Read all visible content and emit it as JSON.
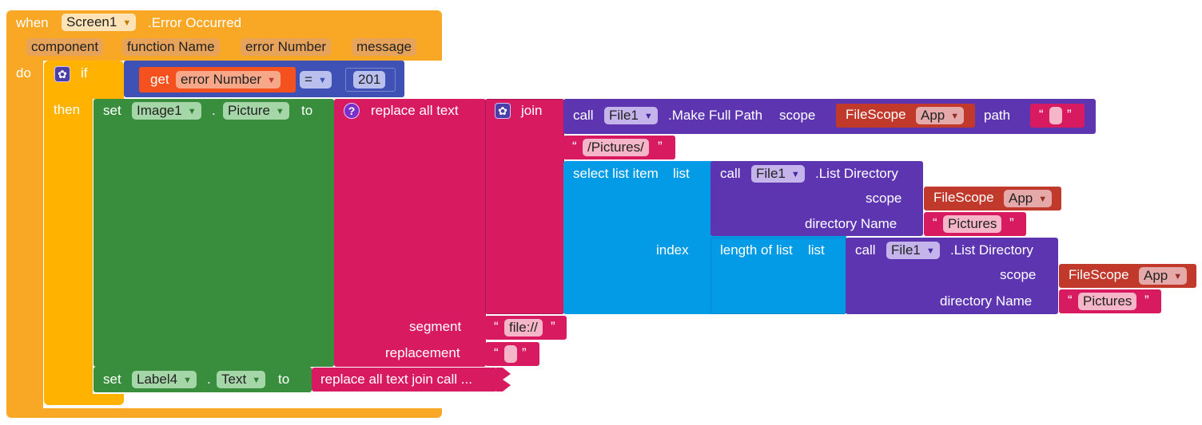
{
  "event": {
    "when": "when",
    "component": "Screen1",
    "event_name": ".Error Occurred",
    "params": [
      "component",
      "function Name",
      "error Number",
      "message"
    ],
    "do": "do"
  },
  "if_block": {
    "if": "if",
    "then": "then",
    "get": "get",
    "get_var": "error Number",
    "op": "=",
    "number": "201"
  },
  "set1": {
    "set": "set",
    "component": "Image1",
    "dot": ".",
    "property": "Picture",
    "to": "to"
  },
  "replace": {
    "label": "replace all text",
    "segment": "segment",
    "replacement": "replacement",
    "segment_value": "file://",
    "replacement_value": ""
  },
  "join": {
    "label": "join"
  },
  "make_full_path": {
    "call": "call",
    "component": "File1",
    "method": ".Make Full Path",
    "scope_label": "scope",
    "path_label": "path",
    "path_value": ""
  },
  "filescope": {
    "label": "FileScope",
    "value": "App"
  },
  "pictures_str": "/Pictures/",
  "select_list": {
    "label": "select list item",
    "list": "list",
    "index": "index"
  },
  "list_dir": {
    "call": "call",
    "component": "File1",
    "method": ".List Directory",
    "scope_label": "scope",
    "dir_label": "directory Name",
    "dir_value": "Pictures"
  },
  "length_of_list": {
    "label": "length of list",
    "list": "list"
  },
  "set2": {
    "set": "set",
    "component": "Label4",
    "dot": ".",
    "property": "Text",
    "to": "to",
    "collapsed": "replace all text join call ..."
  },
  "quote_open": "“",
  "quote_close": "”",
  "colors": {
    "event": "#f9a825",
    "control": "#ffb300",
    "math": "#3f51b5",
    "variable": "#f4511e",
    "setter": "#388e3c",
    "text": "#d81b60",
    "component_method": "#5e35b1",
    "list": "#039be5",
    "filescope": "#c0392b"
  }
}
